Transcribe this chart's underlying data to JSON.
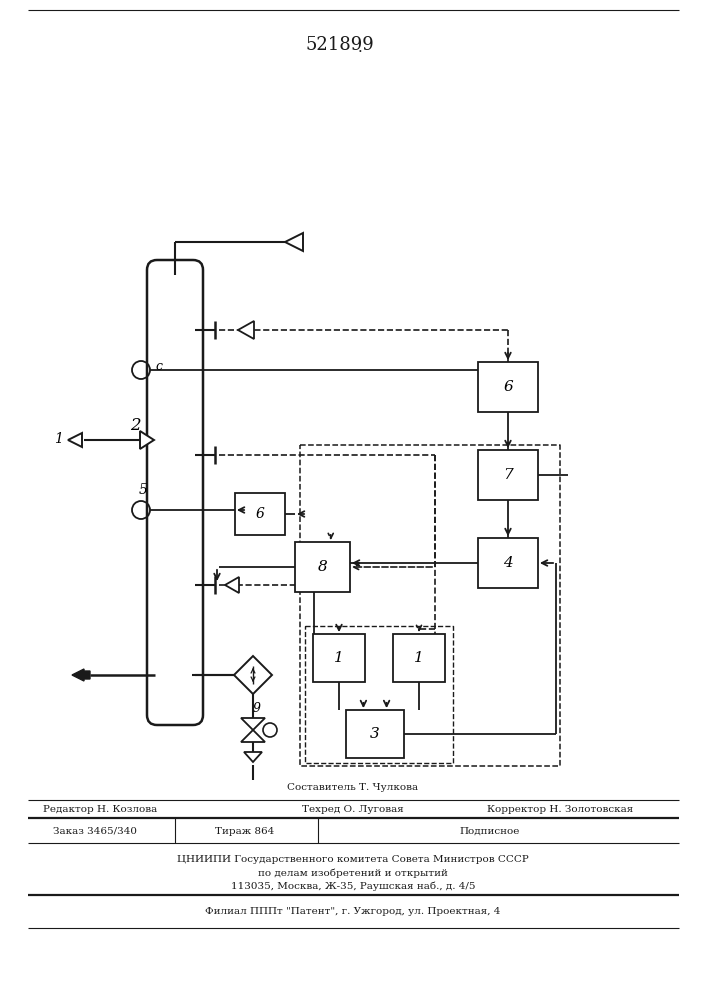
{
  "title": "521899",
  "bg_color": "#ffffff",
  "line_color": "#1a1a1a",
  "footer_lines": [
    "Составитель Т. Чулкова",
    "Редактор Н. Козлова",
    "Техред О. Луговая",
    "Корректор Н. Золотовская",
    "Заказ 3465/340",
    "Тираж 864",
    "Подписное",
    "ЦНИИПИ Государственного комитета Совета Министров СССР",
    "по делам изобретений и открытий",
    "113035, Москва, Ж-35, Раушская наб., д. 4/5",
    "Филиал ПП П «Патент», г. Ужгород, ул. Проектная, 4"
  ]
}
